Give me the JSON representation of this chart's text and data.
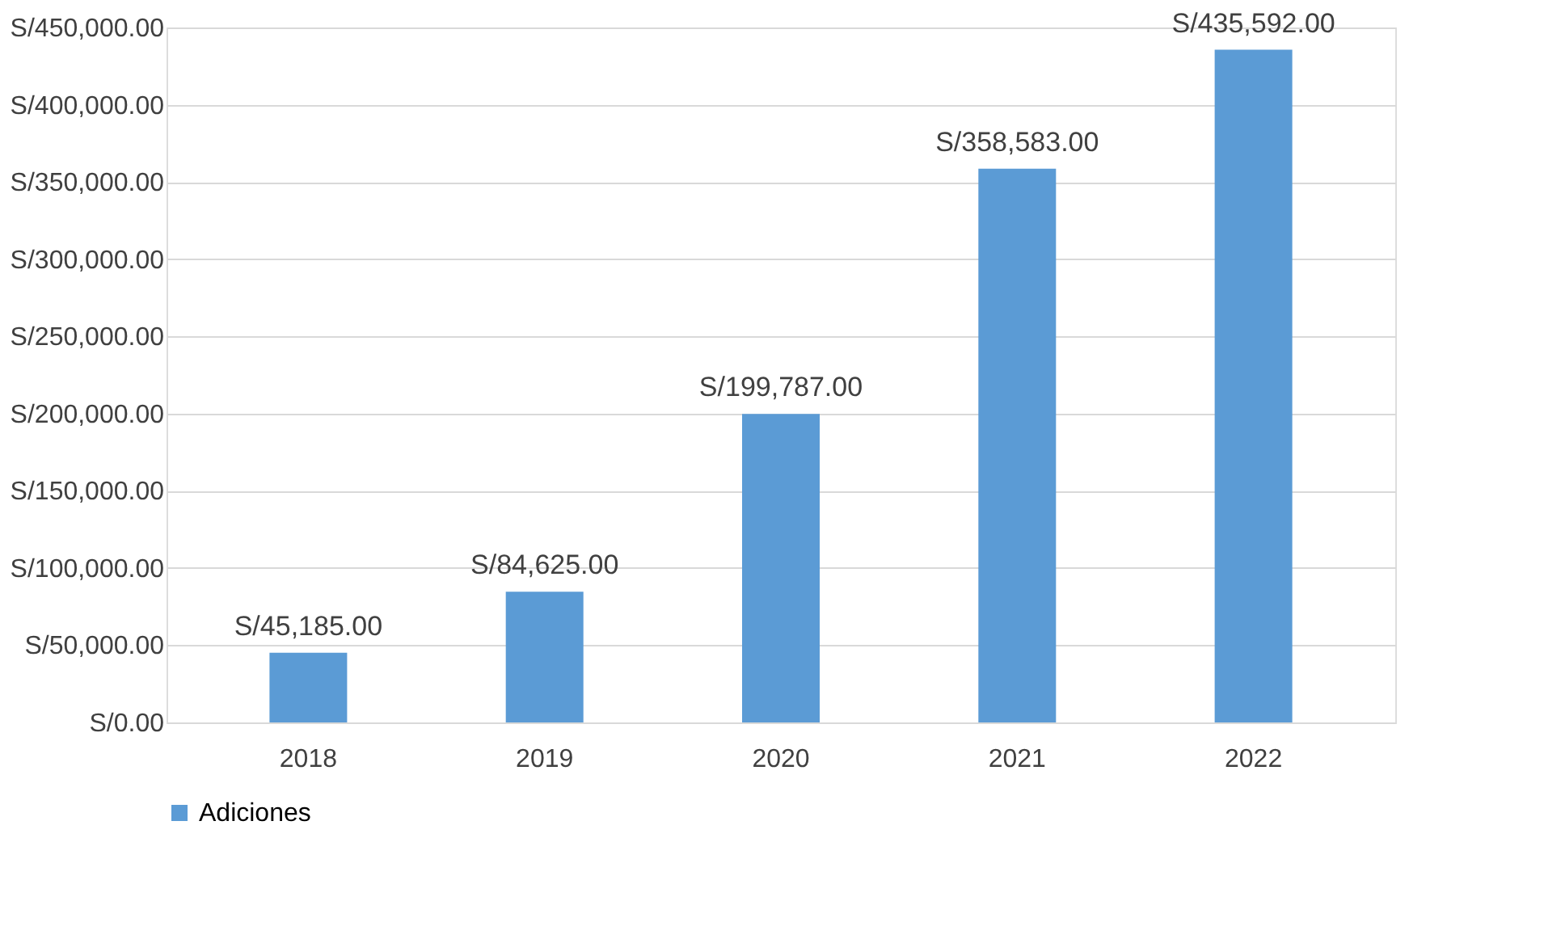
{
  "chart_data": {
    "type": "bar",
    "categories": [
      "2018",
      "2019",
      "2020",
      "2021",
      "2022"
    ],
    "series": [
      {
        "name": "Adiciones",
        "color": "#5b9bd5",
        "values": [
          45185,
          84625,
          199787,
          358583,
          435592
        ]
      }
    ],
    "value_labels": [
      "S/45,185.00",
      "S/84,625.00",
      "S/199,787.00",
      "S/358,583.00",
      "S/435,592.00"
    ],
    "ylim": [
      0,
      450000
    ],
    "yticks": [
      {
        "value": 0,
        "label": "S/0.00"
      },
      {
        "value": 50000,
        "label": "S/50,000.00"
      },
      {
        "value": 100000,
        "label": "S/100,000.00"
      },
      {
        "value": 150000,
        "label": "S/150,000.00"
      },
      {
        "value": 200000,
        "label": "S/200,000.00"
      },
      {
        "value": 250000,
        "label": "S/250,000.00"
      },
      {
        "value": 300000,
        "label": "S/300,000.00"
      },
      {
        "value": 350000,
        "label": "S/350,000.00"
      },
      {
        "value": 400000,
        "label": "S/400,000.00"
      },
      {
        "value": 450000,
        "label": "S/450,000.00"
      }
    ],
    "grid": "y",
    "legend": "bottom"
  }
}
